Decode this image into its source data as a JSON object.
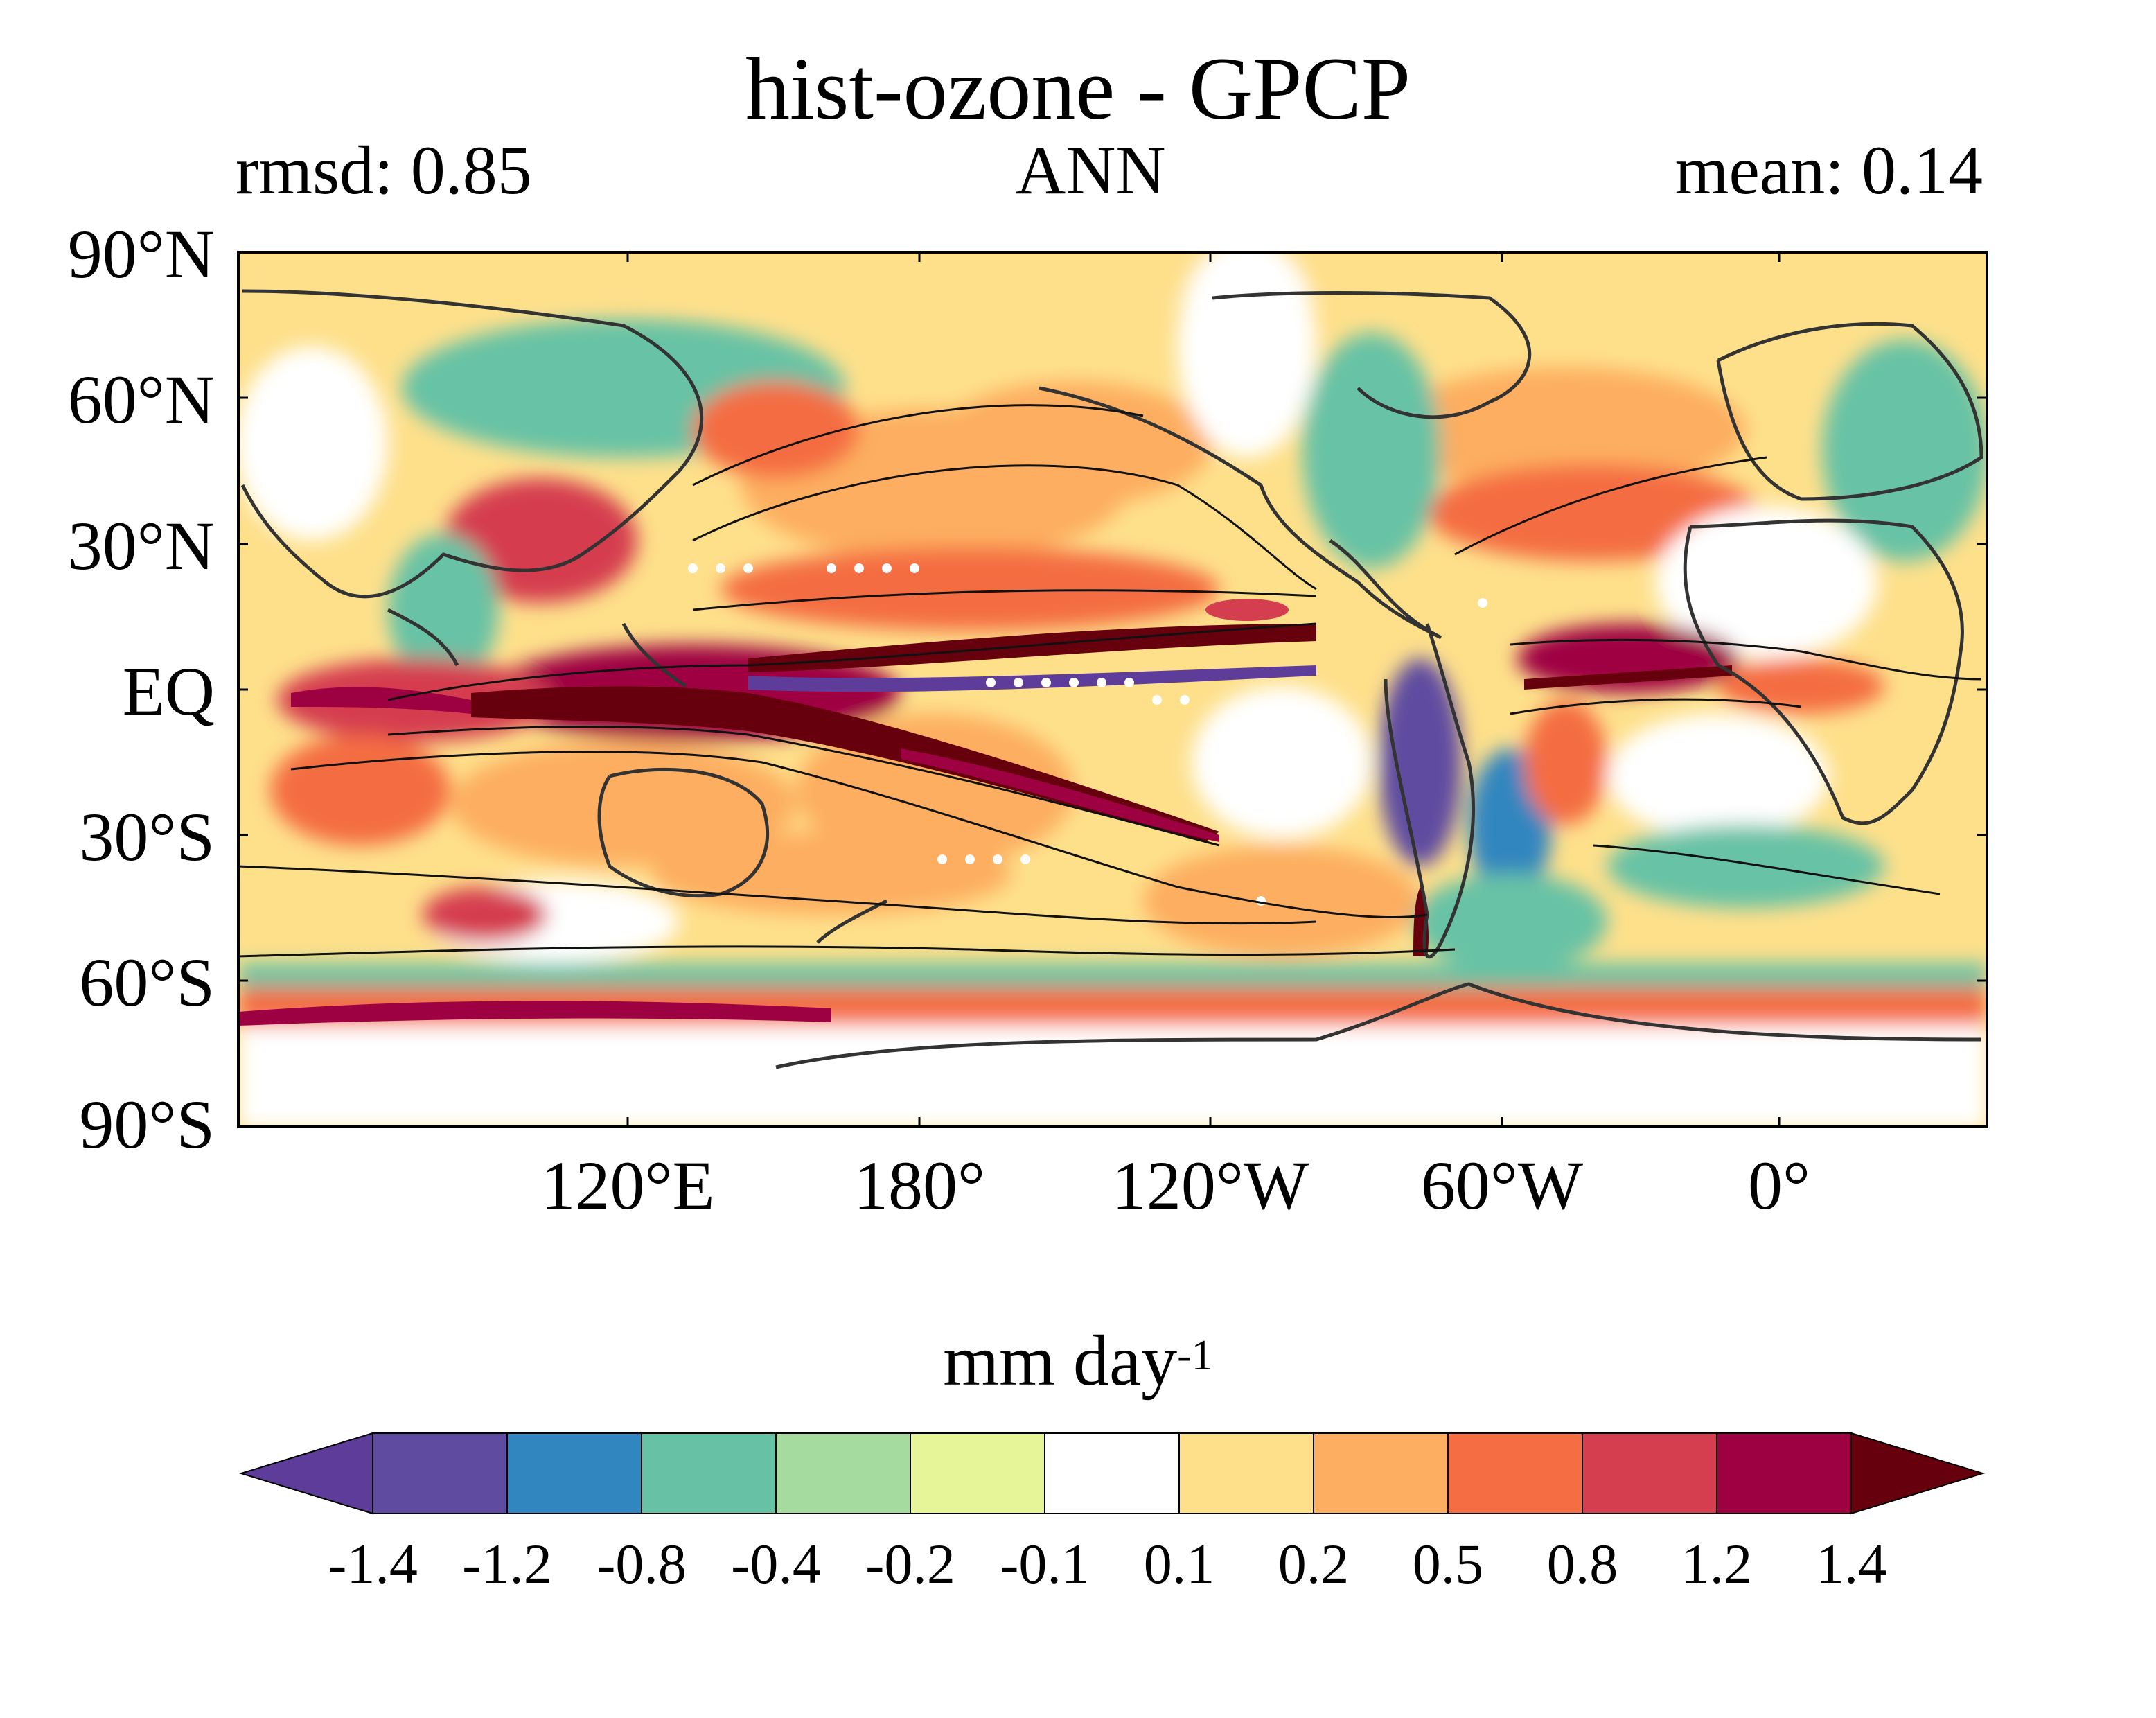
{
  "header": {
    "title": "hist-ozone - GPCP",
    "left_stat": "rmsd: 0.85",
    "center_label": "ANN",
    "right_stat": "mean: 0.14"
  },
  "map": {
    "lat_ticks": [
      "90°N",
      "60°N",
      "30°N",
      "EQ",
      "30°S",
      "60°S",
      "90°S"
    ],
    "lon_ticks": [
      "120°E",
      "180°",
      "120°W",
      "60°W",
      "0°"
    ],
    "field_description_colors": {
      "ocean_positive_strong": "#67001f",
      "land_outline": "#333333",
      "contour": "#111111",
      "significance_dots": "#ffffff"
    }
  },
  "colorbar": {
    "units_main": "mm day",
    "units_exp": "-1",
    "levels": [
      "-1.4",
      "-1.2",
      "-0.8",
      "-0.4",
      "-0.2",
      "-0.1",
      "0.1",
      "0.2",
      "0.5",
      "0.8",
      "1.2",
      "1.4"
    ],
    "colors": [
      "#5e3c99",
      "#5f4ba0",
      "#3186bf",
      "#67c2a5",
      "#a6dba0",
      "#e6f598",
      "#ffffff",
      "#fee08b",
      "#fdae61",
      "#f46d43",
      "#d53e4f",
      "#9e0142",
      "#67000d"
    ]
  }
}
